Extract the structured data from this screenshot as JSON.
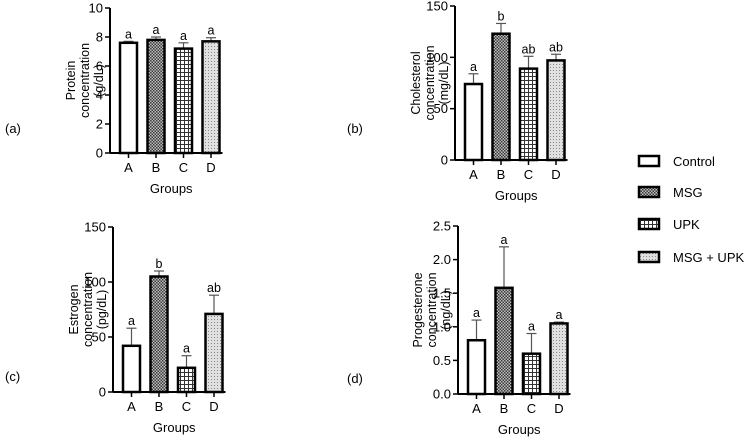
{
  "figure": {
    "legend": {
      "placement": "right",
      "items": [
        {
          "label": "Control",
          "pattern": "blank"
        },
        {
          "label": "MSG",
          "pattern": "checker"
        },
        {
          "label": "UPK",
          "pattern": "grid"
        },
        {
          "label": "MSG + UPK",
          "pattern": "dots"
        }
      ]
    }
  },
  "chart_data": [
    {
      "type": "bar",
      "panel": "(a)",
      "ylabel_lines": [
        "Protein",
        "concentration",
        "(g/dL)"
      ],
      "xlabel": "Groups",
      "categories": [
        "A",
        "B",
        "C",
        "D"
      ],
      "values": [
        7.6,
        7.8,
        7.2,
        7.7
      ],
      "error_upper": [
        7.7,
        8.0,
        7.6,
        7.95
      ],
      "letters": [
        "a",
        "a",
        "a",
        "a"
      ],
      "ylim": [
        0,
        10
      ],
      "yticks": [
        0,
        2,
        4,
        6,
        8,
        10
      ],
      "ytick_labels": [
        "0",
        "2",
        "4",
        "6",
        "8",
        "10"
      ],
      "grid": false
    },
    {
      "type": "bar",
      "panel": "(b)",
      "ylabel_lines": [
        "Cholesterol",
        "concentration",
        "(mg/dL)"
      ],
      "xlabel": "Groups",
      "categories": [
        "A",
        "B",
        "C",
        "D"
      ],
      "values": [
        74,
        123,
        89,
        97
      ],
      "error_upper": [
        84,
        133,
        101,
        103
      ],
      "letters": [
        "a",
        "b",
        "ab",
        "ab"
      ],
      "ylim": [
        0,
        150
      ],
      "yticks": [
        0,
        50,
        100,
        150
      ],
      "ytick_labels": [
        "0",
        "50",
        "100",
        "150"
      ],
      "grid": false
    },
    {
      "type": "bar",
      "panel": "(c)",
      "ylabel_lines": [
        "Estrogen",
        "concentration",
        "(pg/dL)"
      ],
      "xlabel": "Groups",
      "categories": [
        "A",
        "B",
        "C",
        "D"
      ],
      "values": [
        42,
        105,
        22,
        71
      ],
      "error_upper": [
        58,
        110,
        33,
        88
      ],
      "letters": [
        "a",
        "b",
        "a",
        "ab"
      ],
      "ylim": [
        0,
        150
      ],
      "yticks": [
        0,
        50,
        100,
        150
      ],
      "ytick_labels": [
        "0",
        "50",
        "100",
        "150"
      ],
      "grid": false
    },
    {
      "type": "bar",
      "panel": "(d)",
      "ylabel_lines": [
        "Progesterone",
        "concentration",
        "(ng/dL)"
      ],
      "xlabel": "Groups",
      "categories": [
        "A",
        "B",
        "C",
        "D"
      ],
      "values": [
        0.8,
        1.58,
        0.6,
        1.05
      ],
      "error_upper": [
        1.1,
        2.19,
        0.9,
        1.07
      ],
      "letters": [
        "a",
        "a",
        "a",
        "a"
      ],
      "ylim": [
        0,
        2.5
      ],
      "yticks": [
        0,
        0.5,
        1.0,
        1.5,
        2.0,
        2.5
      ],
      "ytick_labels": [
        "0.0",
        "0.5",
        "1.0",
        "1.5",
        "2.0",
        "2.5"
      ],
      "grid": false
    }
  ]
}
